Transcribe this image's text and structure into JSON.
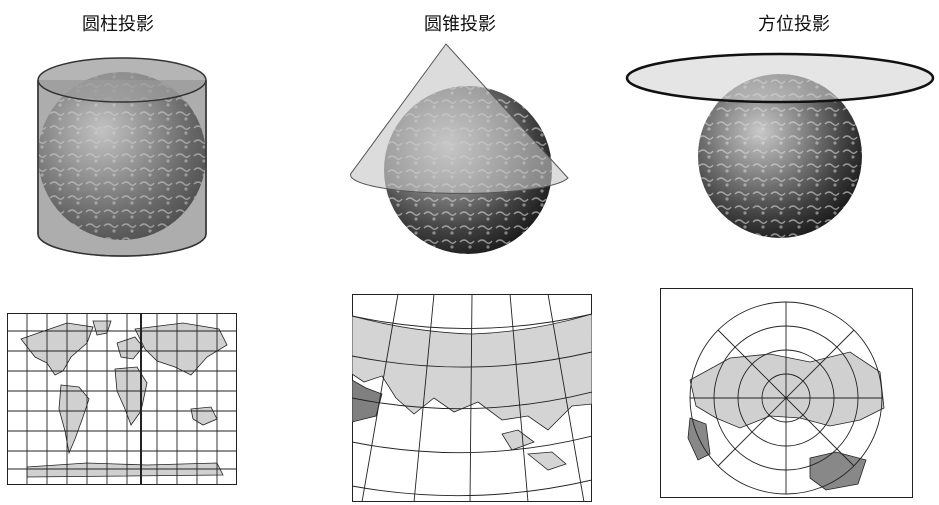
{
  "titles": {
    "cylindrical": "圆柱投影",
    "conic": "圆锥投影",
    "azimuthal": "方位投影"
  },
  "colors": {
    "globe_dark": "#3a3a3a",
    "globe_light": "#9a9a9a",
    "surface_fill": "#b0b0b0",
    "land_fill": "#cfcfcf",
    "line": "#222222"
  }
}
